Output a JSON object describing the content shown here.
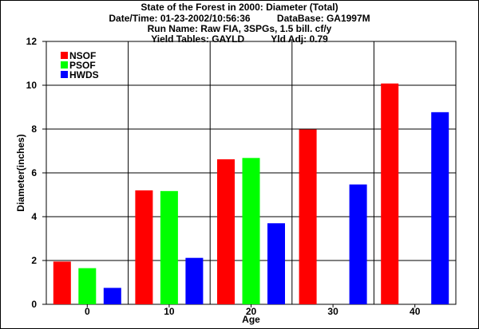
{
  "header": {
    "title_line1": "State of the Forest in 2000: Diameter (Total)",
    "datetime": "Date/Time: 01-23-2002/10:56:36",
    "database": "DataBase: GA1997M",
    "run_name": "Run Name: Raw FIA, 3SPGs, 1.5 bill. cf/y",
    "yield_tables": "Yield Tables: GAYLD",
    "yld_adj": "Yld Adj: 0.79"
  },
  "chart_data": {
    "type": "bar",
    "categories": [
      "0",
      "10",
      "20",
      "30",
      "40"
    ],
    "series": [
      {
        "name": "NSOF",
        "color": "#ff0000",
        "values": [
          1.95,
          5.2,
          6.62,
          7.98,
          10.08
        ]
      },
      {
        "name": "PSOF",
        "color": "#00ff00",
        "values": [
          1.65,
          5.17,
          6.68,
          null,
          null
        ]
      },
      {
        "name": "HWDS",
        "color": "#0000ff",
        "values": [
          0.75,
          2.12,
          3.7,
          5.47,
          8.77
        ]
      }
    ],
    "xlabel": "Age",
    "ylabel": "Diameter(inches)",
    "ylim": [
      0,
      12
    ],
    "yticks": [
      "0",
      "2",
      "4",
      "6",
      "8",
      "10",
      "12"
    ],
    "grid": true,
    "legend_position": "top-left"
  }
}
